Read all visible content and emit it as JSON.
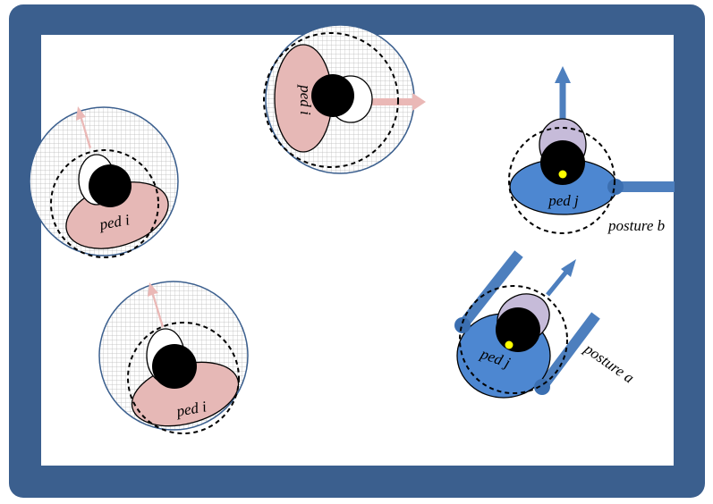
{
  "colors": {
    "frame": "#3b5f8e",
    "canvas": "#ffffff",
    "ped_i_body": "#e6b8b6",
    "ped_i_arrow": "#eab8b6",
    "ped_j_body": "#4d87d1",
    "ped_j_head": "#c6bbd9",
    "ped_j_arrow": "#4d7fbe",
    "grid": "#b7b7b7",
    "zone_border": "#3b5f8e",
    "marker": "#ffff00",
    "outline": "#000000"
  },
  "pedestrians": [
    {
      "id": "ped-i-top",
      "label": "ped i",
      "group": "i"
    },
    {
      "id": "ped-i-left",
      "label": "ped i",
      "group": "i"
    },
    {
      "id": "ped-i-bottom",
      "label": "ped i",
      "group": "i"
    },
    {
      "id": "ped-j-b",
      "label": "ped j",
      "group": "j",
      "posture": "posture b"
    },
    {
      "id": "ped-j-a",
      "label": "ped j",
      "group": "j",
      "posture": "posture a"
    }
  ]
}
